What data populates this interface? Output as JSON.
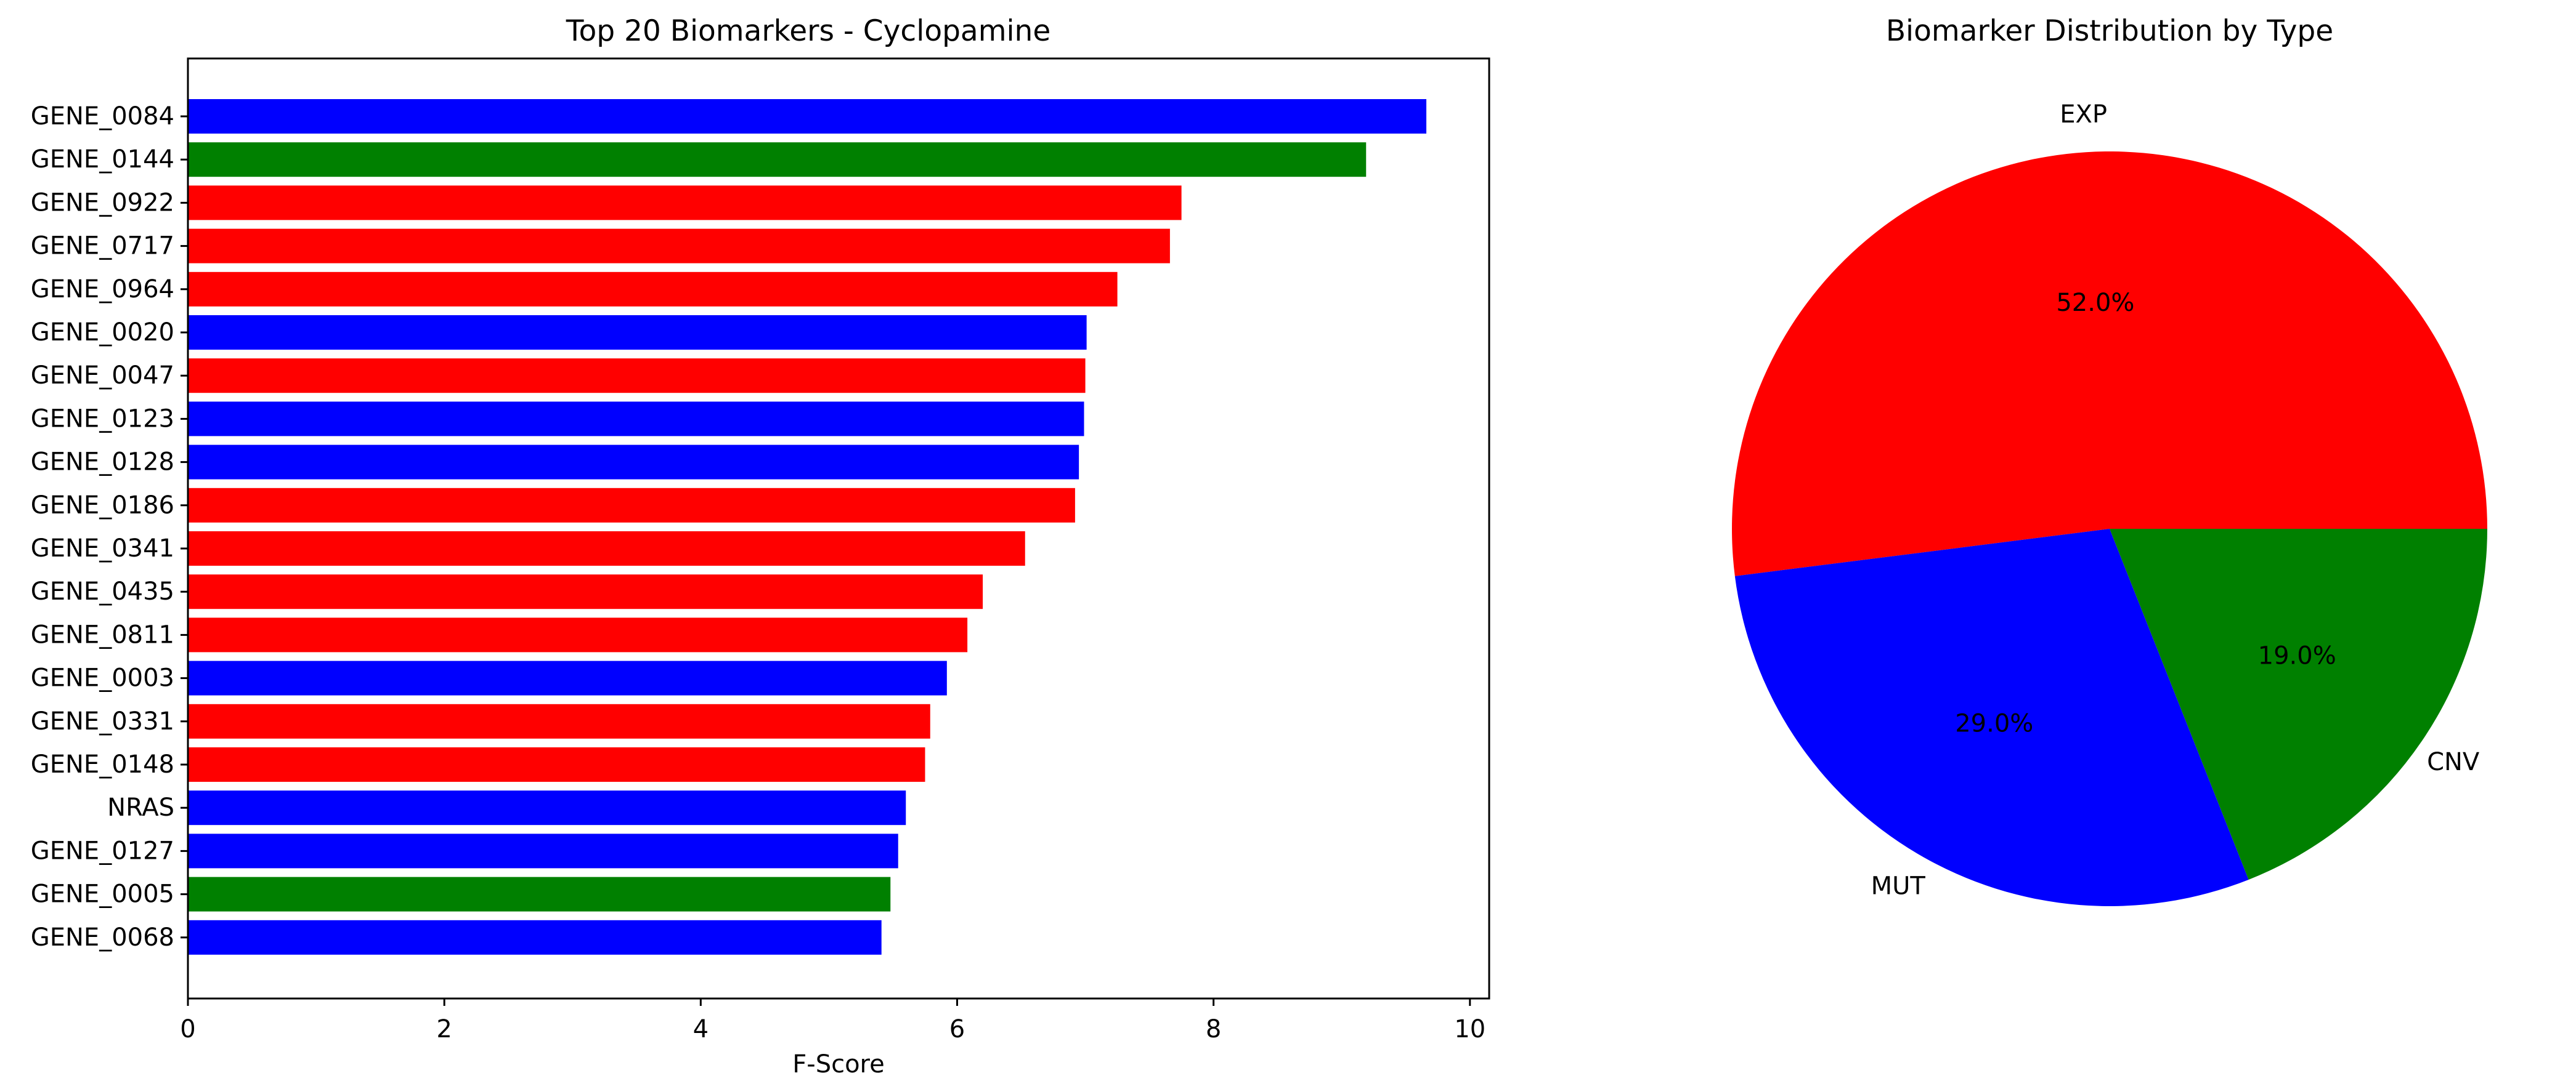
{
  "chart_data": [
    {
      "type": "bar",
      "orientation": "horizontal",
      "title": "Top 20 Biomarkers - Cyclopamine",
      "xlabel": "F-Score",
      "ylabel": "",
      "xlim": [
        0,
        10.15
      ],
      "xticks": [
        0,
        2,
        4,
        6,
        8,
        10
      ],
      "categories": [
        "GENE_0084",
        "GENE_0144",
        "GENE_0922",
        "GENE_0717",
        "GENE_0964",
        "GENE_0020",
        "GENE_0047",
        "GENE_0123",
        "GENE_0128",
        "GENE_0186",
        "GENE_0341",
        "GENE_0435",
        "GENE_0811",
        "GENE_0003",
        "GENE_0331",
        "GENE_0148",
        "NRAS",
        "GENE_0127",
        "GENE_0005",
        "GENE_0068"
      ],
      "values": [
        9.66,
        9.19,
        7.75,
        7.66,
        7.25,
        7.01,
        7.0,
        6.99,
        6.95,
        6.92,
        6.53,
        6.2,
        6.08,
        5.92,
        5.79,
        5.75,
        5.6,
        5.54,
        5.48,
        5.41
      ],
      "bar_colors": [
        "#0000ff",
        "#008000",
        "#ff0000",
        "#ff0000",
        "#ff0000",
        "#0000ff",
        "#ff0000",
        "#0000ff",
        "#0000ff",
        "#ff0000",
        "#ff0000",
        "#ff0000",
        "#ff0000",
        "#0000ff",
        "#ff0000",
        "#ff0000",
        "#0000ff",
        "#0000ff",
        "#008000",
        "#0000ff"
      ],
      "grid": false,
      "legend": "none"
    },
    {
      "type": "pie",
      "title": "Biomarker Distribution by Type",
      "labels": [
        "EXP",
        "MUT",
        "CNV"
      ],
      "percent_labels": [
        "52.0%",
        "29.0%",
        "19.0%"
      ],
      "values": [
        52.0,
        29.0,
        19.0
      ],
      "colors": [
        "#ff0000",
        "#0000ff",
        "#008000"
      ],
      "start_angle_deg": 0,
      "direction": "counterclockwise",
      "legend": "none"
    }
  ]
}
